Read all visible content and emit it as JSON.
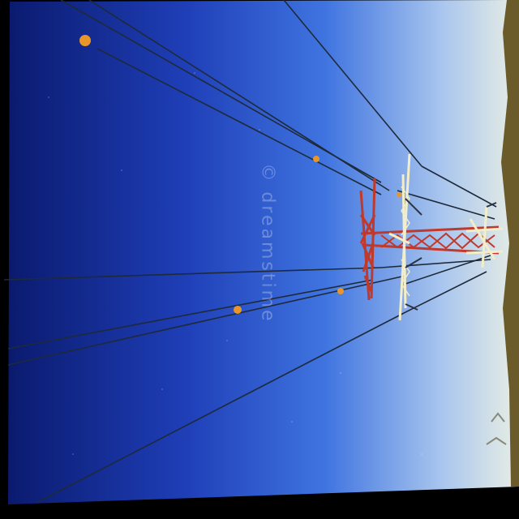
{
  "photo": {
    "subject": "transmission-tower-with-power-lines",
    "watermark": "© dreamstime",
    "colors": {
      "sky_deep": "#0a1a6e",
      "sky_mid": "#2f5fd8",
      "sky_light": "#dfe8e6",
      "tower_red": "#c0392b",
      "tower_white": "#f2eec9",
      "marker_ball": "#e8962a",
      "ground": "#6b5a2a",
      "wire": "#1e2a3a"
    }
  }
}
